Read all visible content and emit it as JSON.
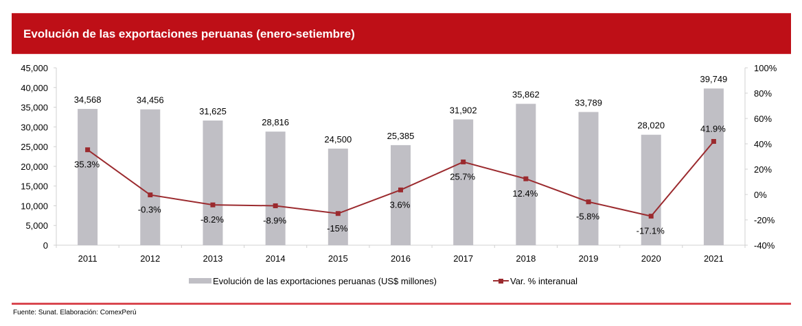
{
  "header": {
    "title": "Evolución de las exportaciones peruanas (enero-setiembre)"
  },
  "footer": {
    "source": "Fuente: Sunat. Elaboración: ComexPerú"
  },
  "colors": {
    "title_bg": "#be0f17",
    "bar": "#c0bfc5",
    "line": "#9b2a2e",
    "footer_line": "#d9474f"
  },
  "chart_data": {
    "type": "bar+line",
    "title": "Evolución de las exportaciones peruanas (enero-setiembre)",
    "categories": [
      "2011",
      "2012",
      "2013",
      "2014",
      "2015",
      "2016",
      "2017",
      "2018",
      "2019",
      "2020",
      "2021"
    ],
    "series": [
      {
        "name": "Evolución de las exportaciones peruanas (US$ millones)",
        "type": "bar",
        "axis": "left",
        "values": [
          34568,
          34456,
          31625,
          28816,
          24500,
          25385,
          31902,
          35862,
          33789,
          28020,
          39749
        ],
        "labels": [
          "34,568",
          "34,456",
          "31,625",
          "28,816",
          "24,500",
          "25,385",
          "31,902",
          "35,862",
          "33,789",
          "28,020",
          "39,749"
        ]
      },
      {
        "name": "Var. % interanual",
        "type": "line",
        "axis": "right",
        "values": [
          35.3,
          -0.3,
          -8.2,
          -8.9,
          -15,
          3.6,
          25.7,
          12.4,
          -5.8,
          -17.1,
          41.9
        ],
        "labels": [
          "35.3%",
          "-0.3%",
          "-8.2%",
          "-8.9%",
          "-15%",
          "3.6%",
          "25.7%",
          "12.4%",
          "-5.8%",
          "-17.1%",
          "41.9%"
        ]
      }
    ],
    "y_left": {
      "min": 0,
      "max": 45000,
      "step": 5000,
      "ticks": [
        "0",
        "5,000",
        "10,000",
        "15,000",
        "20,000",
        "25,000",
        "30,000",
        "35,000",
        "40,000",
        "45,000"
      ]
    },
    "y_right": {
      "min": -40,
      "max": 100,
      "step": 20,
      "ticks": [
        "-40%",
        "-20%",
        "0%",
        "20%",
        "40%",
        "60%",
        "80%",
        "100%"
      ]
    },
    "xlabel": "",
    "ylabel": "",
    "grid": false,
    "legend": {
      "position": "bottom",
      "entries": [
        "Evolución de las exportaciones peruanas (US$ millones)",
        "Var. % interanual"
      ]
    }
  }
}
